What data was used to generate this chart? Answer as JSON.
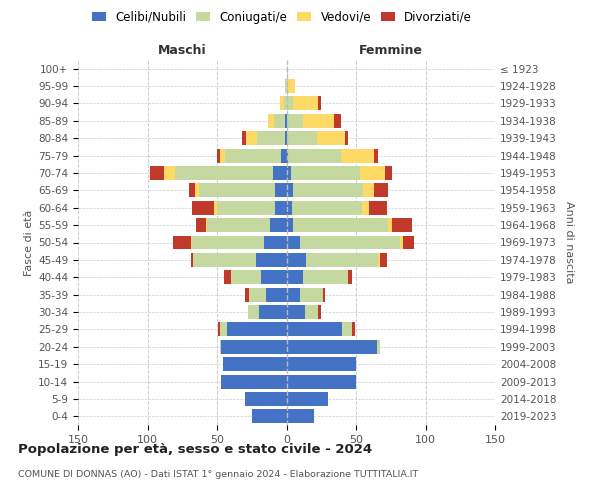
{
  "age_groups": [
    "0-4",
    "5-9",
    "10-14",
    "15-19",
    "20-24",
    "25-29",
    "30-34",
    "35-39",
    "40-44",
    "45-49",
    "50-54",
    "55-59",
    "60-64",
    "65-69",
    "70-74",
    "75-79",
    "80-84",
    "85-89",
    "90-94",
    "95-99",
    "100+"
  ],
  "birth_years": [
    "2019-2023",
    "2014-2018",
    "2009-2013",
    "2004-2008",
    "1999-2003",
    "1994-1998",
    "1989-1993",
    "1984-1988",
    "1979-1983",
    "1974-1978",
    "1969-1973",
    "1964-1968",
    "1959-1963",
    "1954-1958",
    "1949-1953",
    "1944-1948",
    "1939-1943",
    "1934-1938",
    "1929-1933",
    "1924-1928",
    "≤ 1923"
  ],
  "maschi": {
    "celibi": [
      25,
      30,
      47,
      46,
      47,
      43,
      20,
      15,
      18,
      22,
      16,
      12,
      8,
      8,
      10,
      4,
      1,
      1,
      0,
      0,
      0
    ],
    "coniugati": [
      0,
      0,
      0,
      0,
      1,
      5,
      8,
      12,
      22,
      45,
      52,
      45,
      42,
      55,
      70,
      40,
      20,
      8,
      2,
      1,
      0
    ],
    "vedovi": [
      0,
      0,
      0,
      0,
      0,
      0,
      0,
      0,
      0,
      0,
      1,
      1,
      2,
      3,
      8,
      4,
      8,
      4,
      3,
      0,
      0
    ],
    "divorziati": [
      0,
      0,
      0,
      0,
      0,
      1,
      0,
      3,
      5,
      2,
      13,
      7,
      16,
      4,
      10,
      2,
      3,
      0,
      0,
      0,
      0
    ]
  },
  "femmine": {
    "nubili": [
      20,
      30,
      50,
      50,
      65,
      40,
      13,
      10,
      12,
      14,
      10,
      5,
      4,
      5,
      3,
      1,
      0,
      0,
      0,
      0,
      0
    ],
    "coniugate": [
      0,
      0,
      0,
      0,
      2,
      7,
      10,
      16,
      32,
      52,
      72,
      68,
      50,
      50,
      50,
      38,
      22,
      12,
      5,
      1,
      0
    ],
    "vedove": [
      0,
      0,
      0,
      0,
      0,
      0,
      0,
      0,
      0,
      1,
      2,
      3,
      5,
      8,
      18,
      24,
      20,
      22,
      18,
      5,
      0
    ],
    "divorziate": [
      0,
      0,
      0,
      0,
      0,
      2,
      2,
      2,
      3,
      5,
      8,
      14,
      13,
      10,
      5,
      3,
      2,
      5,
      2,
      0,
      0
    ]
  },
  "colors": {
    "celibi": "#4472c4",
    "coniugati": "#c5d8a0",
    "vedovi": "#ffd966",
    "divorziati": "#c0392b"
  },
  "title": "Popolazione per età, sesso e stato civile - 2024",
  "subtitle": "COMUNE DI DONNAS (AO) - Dati ISTAT 1° gennaio 2024 - Elaborazione TUTTITALIA.IT",
  "xlabel_left": "Maschi",
  "xlabel_right": "Femmine",
  "ylabel_left": "Fasce di età",
  "ylabel_right": "Anni di nascita",
  "xlim": 150,
  "background_color": "#ffffff",
  "legend_labels": [
    "Celibi/Nubili",
    "Coniugati/e",
    "Vedovi/e",
    "Divorziati/e"
  ]
}
